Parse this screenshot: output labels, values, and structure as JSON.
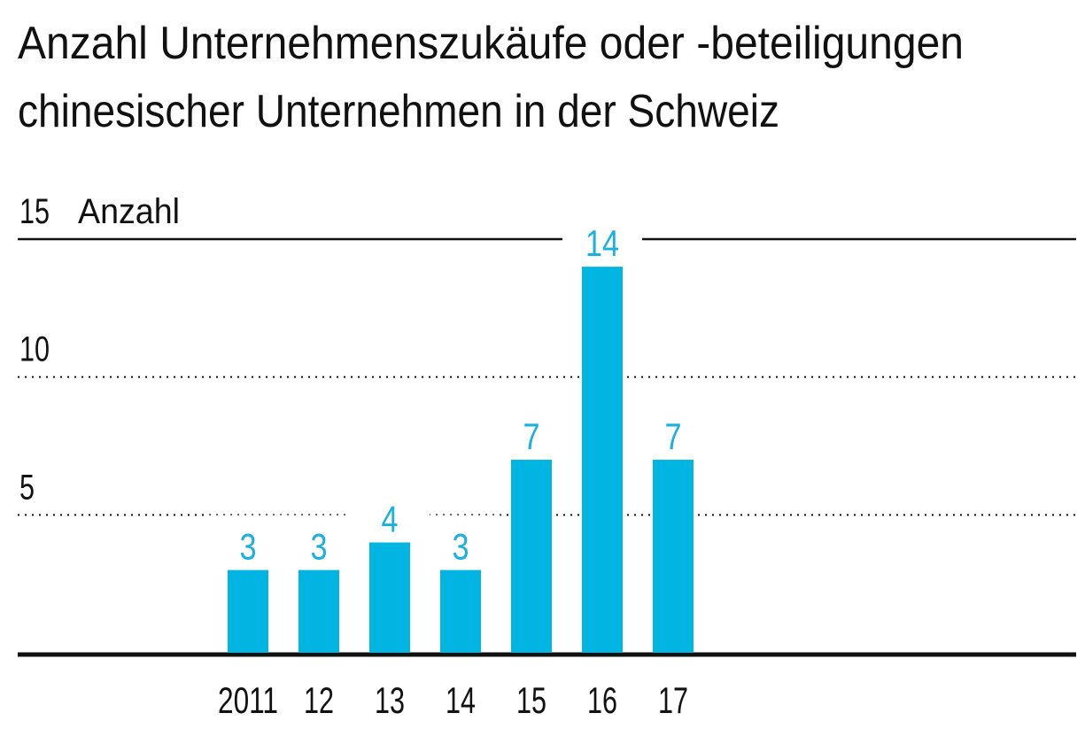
{
  "chart_data": {
    "type": "bar",
    "title_line1": "Anzahl Unternehmenszukäufe oder -beteiligungen",
    "title_line2": "chinesischer Unternehmen in der Schweiz",
    "ylabel": "Anzahl",
    "xlabel": "",
    "categories": [
      "2011",
      "12",
      "13",
      "14",
      "15",
      "16",
      "17"
    ],
    "values": [
      3,
      3,
      4,
      3,
      7,
      14,
      7
    ],
    "ylim": [
      0,
      15
    ],
    "yticks": [
      5,
      10,
      15
    ],
    "grid": true,
    "colors": {
      "bar": "#00b5e2",
      "label": "#1ab0df",
      "text": "#111111"
    }
  }
}
